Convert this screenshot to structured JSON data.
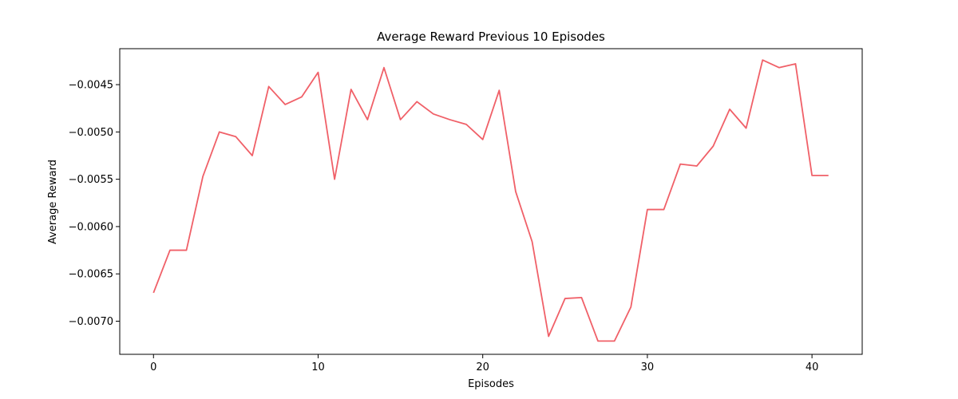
{
  "chart_data": {
    "type": "line",
    "title": "Average Reward Previous 10 Episodes",
    "xlabel": "Episodes",
    "ylabel": "Average Reward",
    "xlim": [
      -2.05,
      43.05
    ],
    "ylim": [
      -0.00735,
      -0.00412
    ],
    "x_ticks": [
      0,
      10,
      20,
      30,
      40
    ],
    "x_tick_labels": [
      "0",
      "10",
      "20",
      "30",
      "40"
    ],
    "y_ticks": [
      -0.007,
      -0.0065,
      -0.006,
      -0.0055,
      -0.005,
      -0.0045
    ],
    "y_tick_labels": [
      "−0.0070",
      "−0.0065",
      "−0.0060",
      "−0.0055",
      "−0.0050",
      "−0.0045"
    ],
    "grid": false,
    "series": [
      {
        "color": "#f06068",
        "x": [
          0,
          1,
          2,
          3,
          4,
          5,
          6,
          7,
          8,
          9,
          10,
          11,
          12,
          13,
          14,
          15,
          16,
          17,
          18,
          19,
          20,
          21,
          22,
          23,
          24,
          25,
          26,
          27,
          28,
          29,
          30,
          31,
          32,
          33,
          34,
          35,
          36,
          37,
          38,
          39,
          40,
          41
        ],
        "values": [
          -0.0067,
          -0.00625,
          -0.00625,
          -0.00547,
          -0.005,
          -0.00505,
          -0.00525,
          -0.00452,
          -0.00471,
          -0.00463,
          -0.00437,
          -0.0055,
          -0.00455,
          -0.00487,
          -0.00432,
          -0.00487,
          -0.00468,
          -0.00481,
          -0.00487,
          -0.00492,
          -0.00508,
          -0.00456,
          -0.00563,
          -0.00616,
          -0.00716,
          -0.00676,
          -0.00675,
          -0.00721,
          -0.00721,
          -0.00685,
          -0.00582,
          -0.00582,
          -0.00534,
          -0.00536,
          -0.00515,
          -0.00476,
          -0.00496,
          -0.00424,
          -0.00432,
          -0.00428,
          -0.00546,
          -0.00546
        ]
      }
    ]
  }
}
